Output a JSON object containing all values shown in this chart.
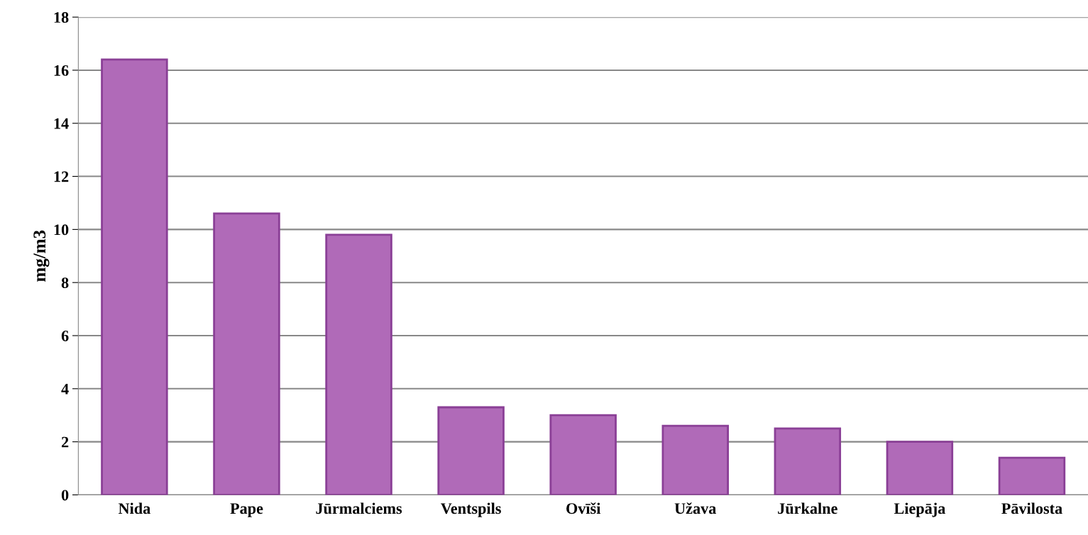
{
  "chart_data": {
    "type": "bar",
    "ylabel": "mg/m3",
    "categories": [
      "Nida",
      "Pape",
      "Jūrmalciems",
      "Ventspils",
      "Ovīši",
      "Užava",
      "Jūrkalne",
      "Liepāja",
      "Pāvilosta"
    ],
    "values": [
      16.4,
      10.6,
      9.8,
      3.3,
      3.0,
      2.6,
      2.5,
      2.0,
      1.4
    ],
    "color": "#b06ab8",
    "ylim": [
      0,
      18
    ],
    "yticks": [
      0,
      2,
      4,
      6,
      8,
      10,
      12,
      14,
      16,
      18
    ],
    "grid": "y"
  }
}
